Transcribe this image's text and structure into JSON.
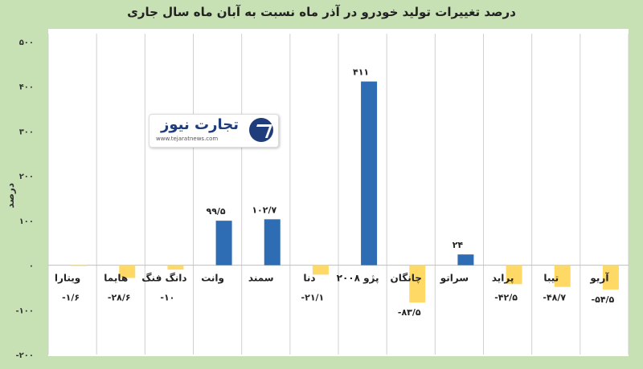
{
  "chart_data": {
    "type": "bar",
    "title": "درصد تغییرات تولید خودرو در آذر ماه نسبت به آبان ماه سال جاری",
    "ylabel": "درصد",
    "xlabel": "",
    "ylim": [
      -200,
      500
    ],
    "yticks": [
      500,
      400,
      300,
      200,
      100,
      0,
      -100,
      -200
    ],
    "ytick_labels": [
      "۵۰۰",
      "۴۰۰",
      "۳۰۰",
      "۲۰۰",
      "۱۰۰",
      "۰",
      "-۱۰۰",
      "-۲۰۰"
    ],
    "grid": true,
    "categories": [
      "ویتارا",
      "هایما",
      "دانگ فنگ",
      "وانت",
      "سمند",
      "دنا",
      "پژو ۲۰۰۸",
      "چانگان",
      "سراتو",
      "پراید",
      "تیبا",
      "آریو"
    ],
    "values": [
      -1.6,
      -28.6,
      -10,
      99.5,
      102.7,
      -21.1,
      411,
      -83.5,
      24,
      -42.5,
      -48.7,
      -54.5
    ],
    "value_labels": [
      "-۱/۶",
      "-۲۸/۶",
      "-۱۰",
      "۹۹/۵",
      "۱۰۲/۷",
      "-۲۱/۱",
      "۴۱۱",
      "-۸۳/۵",
      "۲۴",
      "-۴۲/۵",
      "-۴۸/۷",
      "-۵۴/۵"
    ],
    "colors": {
      "positive": "#2e6db4",
      "negative": "#ffd966",
      "grid": "#d0d0d0",
      "background": "#c7e0b4"
    }
  },
  "logo": {
    "name": "تجارت نیوز",
    "url": "www.tejaratnews.com"
  }
}
